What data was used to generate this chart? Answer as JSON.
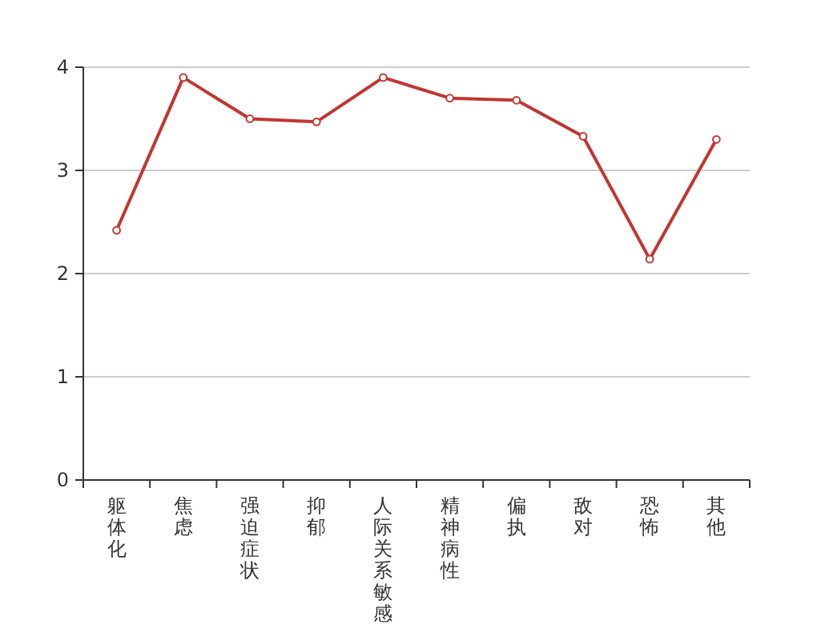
{
  "chart_data": {
    "type": "line",
    "categories": [
      "躯体化",
      "焦虑",
      "强迫症状",
      "抑郁",
      "人际关系敏感",
      "精神病性",
      "偏执",
      "敌对",
      "恐怖",
      "其他"
    ],
    "series": [
      {
        "color": "#c23531",
        "values": [
          2.42,
          3.9,
          3.5,
          3.47,
          3.9,
          3.7,
          3.68,
          3.33,
          2.14,
          3.3
        ]
      }
    ],
    "ylim": [
      0,
      4
    ],
    "yticks": [
      0,
      1,
      2,
      3,
      4
    ],
    "grid": "y",
    "marker": "circle",
    "line_style": "solid"
  }
}
